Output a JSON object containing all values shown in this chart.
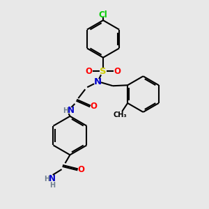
{
  "bg_color": "#e8e8e8",
  "bond_color": "#000000",
  "atom_colors": {
    "N": "#0000cd",
    "O": "#ff0000",
    "S": "#cccc00",
    "Cl": "#00cc00",
    "C": "#000000",
    "H": "#708090"
  },
  "figsize": [
    3.0,
    3.0
  ],
  "dpi": 100
}
